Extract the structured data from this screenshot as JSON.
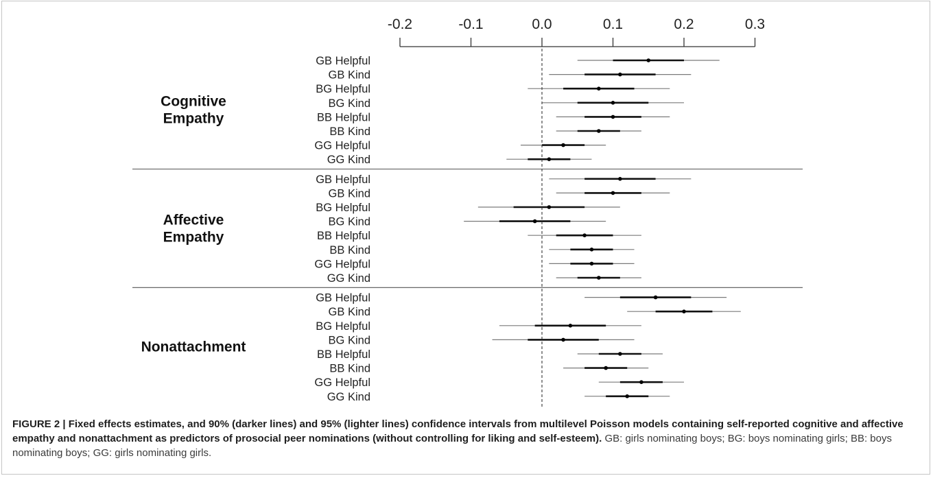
{
  "chart_data": {
    "type": "forest",
    "axis": {
      "ticks": [
        -0.2,
        -0.1,
        0.0,
        0.1,
        0.2,
        0.3
      ],
      "tick_labels": [
        "-0.2",
        "-0.1",
        "0.0",
        "0.1",
        "0.2",
        "0.3"
      ],
      "xlim": [
        -0.2,
        0.3
      ],
      "reference_line": 0.0
    },
    "legend_note": "90% (darker lines) and 95% (lighter lines) confidence intervals",
    "groups": [
      {
        "label_lines": [
          "Cognitive",
          "Empathy"
        ],
        "rows": [
          {
            "label": "GB Helpful",
            "est": 0.15,
            "ci90": [
              0.1,
              0.2
            ],
            "ci95": [
              0.05,
              0.25
            ]
          },
          {
            "label": "GB Kind",
            "est": 0.11,
            "ci90": [
              0.06,
              0.16
            ],
            "ci95": [
              0.01,
              0.21
            ]
          },
          {
            "label": "BG Helpful",
            "est": 0.08,
            "ci90": [
              0.03,
              0.13
            ],
            "ci95": [
              -0.02,
              0.18
            ]
          },
          {
            "label": "BG Kind",
            "est": 0.1,
            "ci90": [
              0.05,
              0.15
            ],
            "ci95": [
              0.0,
              0.2
            ]
          },
          {
            "label": "BB Helpful",
            "est": 0.1,
            "ci90": [
              0.06,
              0.14
            ],
            "ci95": [
              0.02,
              0.18
            ]
          },
          {
            "label": "BB Kind",
            "est": 0.08,
            "ci90": [
              0.05,
              0.11
            ],
            "ci95": [
              0.02,
              0.14
            ]
          },
          {
            "label": "GG Helpful",
            "est": 0.03,
            "ci90": [
              0.0,
              0.06
            ],
            "ci95": [
              -0.03,
              0.09
            ]
          },
          {
            "label": "GG Kind",
            "est": 0.01,
            "ci90": [
              -0.02,
              0.04
            ],
            "ci95": [
              -0.05,
              0.07
            ]
          }
        ]
      },
      {
        "label_lines": [
          "Affective",
          "Empathy"
        ],
        "rows": [
          {
            "label": "GB Helpful",
            "est": 0.11,
            "ci90": [
              0.06,
              0.16
            ],
            "ci95": [
              0.01,
              0.21
            ]
          },
          {
            "label": "GB Kind",
            "est": 0.1,
            "ci90": [
              0.06,
              0.14
            ],
            "ci95": [
              0.02,
              0.18
            ]
          },
          {
            "label": "BG Helpful",
            "est": 0.01,
            "ci90": [
              -0.04,
              0.06
            ],
            "ci95": [
              -0.09,
              0.11
            ]
          },
          {
            "label": "BG Kind",
            "est": -0.01,
            "ci90": [
              -0.06,
              0.04
            ],
            "ci95": [
              -0.11,
              0.09
            ]
          },
          {
            "label": "BB Helpful",
            "est": 0.06,
            "ci90": [
              0.02,
              0.1
            ],
            "ci95": [
              -0.02,
              0.14
            ]
          },
          {
            "label": "BB Kind",
            "est": 0.07,
            "ci90": [
              0.04,
              0.1
            ],
            "ci95": [
              0.01,
              0.13
            ]
          },
          {
            "label": "GG Helpful",
            "est": 0.07,
            "ci90": [
              0.04,
              0.1
            ],
            "ci95": [
              0.01,
              0.13
            ]
          },
          {
            "label": "GG Kind",
            "est": 0.08,
            "ci90": [
              0.05,
              0.11
            ],
            "ci95": [
              0.02,
              0.14
            ]
          }
        ]
      },
      {
        "label_lines": [
          "Nonattachment"
        ],
        "rows": [
          {
            "label": "GB Helpful",
            "est": 0.16,
            "ci90": [
              0.11,
              0.21
            ],
            "ci95": [
              0.06,
              0.26
            ]
          },
          {
            "label": "GB Kind",
            "est": 0.2,
            "ci90": [
              0.16,
              0.24
            ],
            "ci95": [
              0.12,
              0.28
            ]
          },
          {
            "label": "BG Helpful",
            "est": 0.04,
            "ci90": [
              -0.01,
              0.09
            ],
            "ci95": [
              -0.06,
              0.14
            ]
          },
          {
            "label": "BG Kind",
            "est": 0.03,
            "ci90": [
              -0.02,
              0.08
            ],
            "ci95": [
              -0.07,
              0.13
            ]
          },
          {
            "label": "BB Helpful",
            "est": 0.11,
            "ci90": [
              0.08,
              0.14
            ],
            "ci95": [
              0.05,
              0.17
            ]
          },
          {
            "label": "BB Kind",
            "est": 0.09,
            "ci90": [
              0.06,
              0.12
            ],
            "ci95": [
              0.03,
              0.15
            ]
          },
          {
            "label": "GG Helpful",
            "est": 0.14,
            "ci90": [
              0.11,
              0.17
            ],
            "ci95": [
              0.08,
              0.2
            ]
          },
          {
            "label": "GG Kind",
            "est": 0.12,
            "ci90": [
              0.09,
              0.15
            ],
            "ci95": [
              0.06,
              0.18
            ]
          }
        ]
      }
    ],
    "colors": {
      "ci90": "#111111",
      "ci95": "#7a7a7a",
      "estimate": "#000000",
      "reference": "#333333"
    }
  },
  "caption": {
    "label": "FIGURE 2 | Fixed effects estimates, and 90% (darker lines) and 95% (lighter lines) confidence intervals from multilevel Poisson models containing self-reported cognitive and affective empathy and nonattachment as predictors of prosocial peer nominations (without controlling for liking and self-esteem).",
    "body": " GB: girls nominating boys; BG: boys nominating girls; BB: boys nominating boys; GG: girls nominating girls."
  }
}
